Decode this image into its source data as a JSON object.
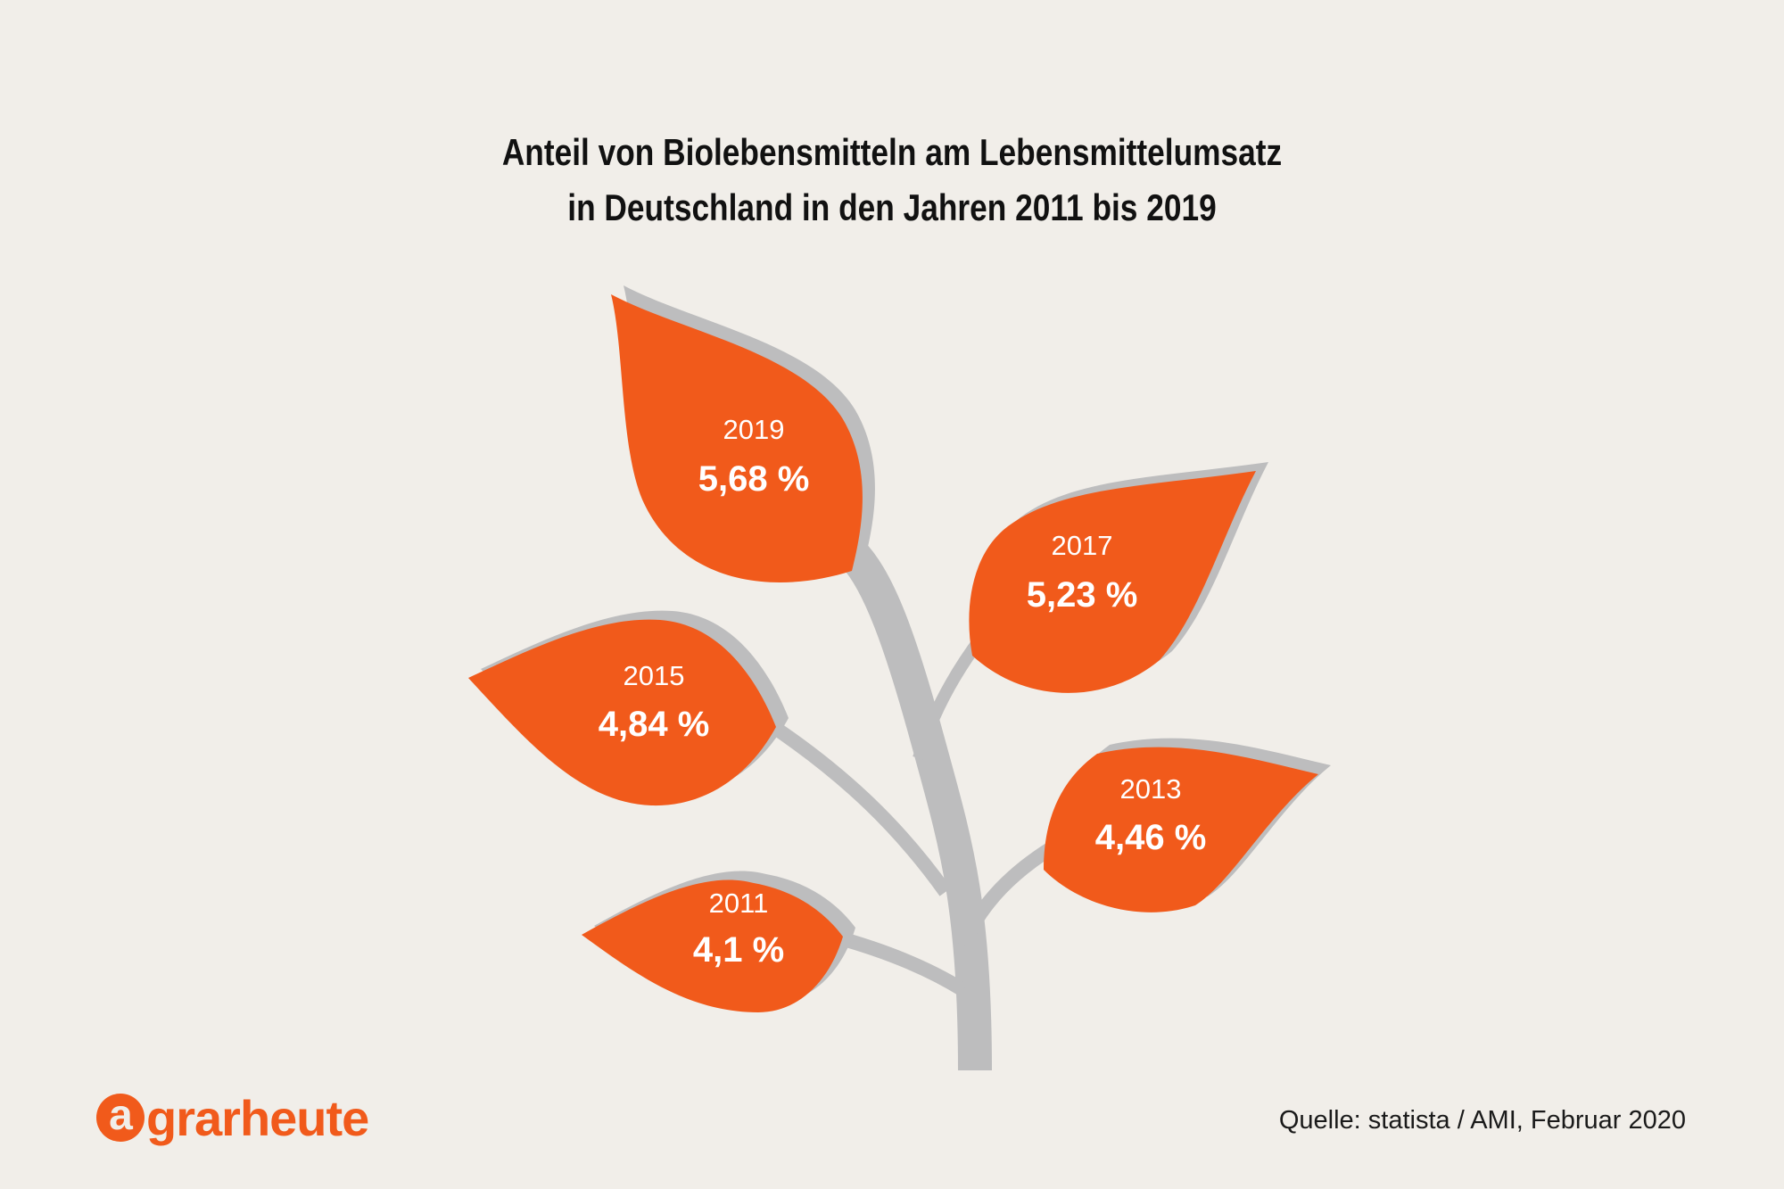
{
  "title_lines": [
    "Anteil von Biolebensmitteln am Lebensmittelumsatz",
    "in Deutschland in den Jahren 2011 bis 2019"
  ],
  "source": "Quelle: statista / AMI, Februar 2020",
  "logo": {
    "a": "a",
    "rest": "grarheute"
  },
  "colors": {
    "leaf": "#f15a1b",
    "stem": "#bdbdbe",
    "shadow": "#bdbdbe",
    "background": "#f1eee9",
    "label": "#ffffff"
  },
  "chart_data": {
    "type": "bar",
    "title": "Anteil von Biolebensmitteln am Lebensmittelumsatz in Deutschland in den Jahren 2011 bis 2019",
    "categories": [
      "2011",
      "2013",
      "2015",
      "2017",
      "2019"
    ],
    "values": [
      4.1,
      4.46,
      4.84,
      5.23,
      5.68
    ],
    "value_labels": [
      "4,1 %",
      "4,46 %",
      "4,84 %",
      "5,23 %",
      "5,68 %"
    ],
    "unit": "%"
  }
}
